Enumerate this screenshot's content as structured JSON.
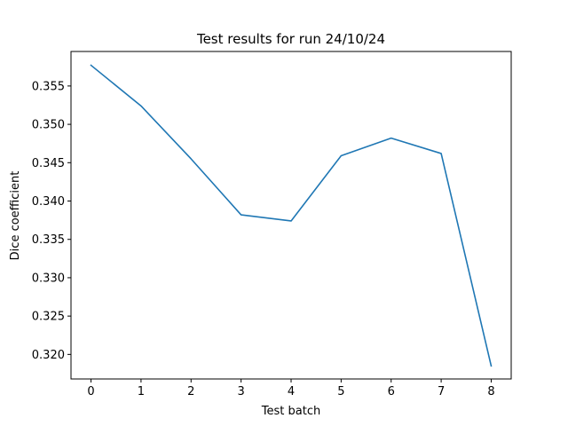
{
  "chart_data": {
    "type": "line",
    "title": "Test results for run 24/10/24",
    "xlabel": "Test batch",
    "ylabel": "Dice coefficient",
    "x": [
      0,
      1,
      2,
      3,
      4,
      5,
      6,
      7,
      8
    ],
    "xticks": [
      "0",
      "1",
      "2",
      "3",
      "4",
      "5",
      "6",
      "7",
      "8"
    ],
    "yticks": [
      "0.320",
      "0.325",
      "0.330",
      "0.335",
      "0.340",
      "0.345",
      "0.350",
      "0.355"
    ],
    "ytick_values": [
      0.32,
      0.325,
      0.33,
      0.335,
      0.34,
      0.345,
      0.35,
      0.355
    ],
    "xlim": [
      -0.4,
      8.4
    ],
    "ylim": [
      0.3168,
      0.3595
    ],
    "grid": false,
    "series": [
      {
        "color": "#1f77b4",
        "values": [
          0.3577,
          0.3524,
          0.3455,
          0.3382,
          0.3374,
          0.3459,
          0.3482,
          0.3462,
          0.3185
        ]
      }
    ]
  }
}
